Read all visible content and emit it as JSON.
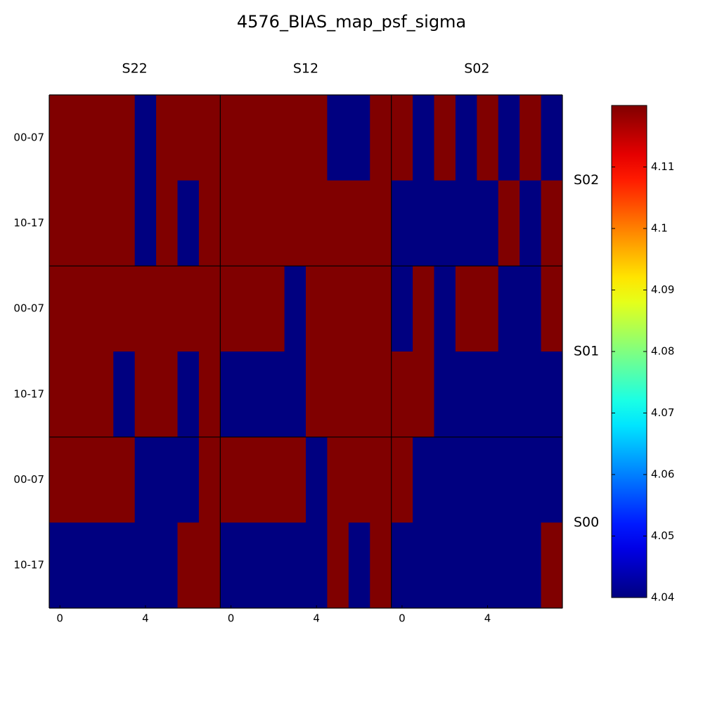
{
  "chart_data": {
    "type": "heatmap",
    "title": "4576_BIAS_map_psf_sigma",
    "column_panels": [
      "S22",
      "S12",
      "S02"
    ],
    "row_panels": [
      "S02",
      "S01",
      "S00"
    ],
    "xticks": [
      0,
      4
    ],
    "xlim": [
      -0.5,
      7.5
    ],
    "y_categories": [
      "00-07",
      "10-17"
    ],
    "colormap": "jet",
    "zlim": [
      4.04,
      4.12
    ],
    "colorbar_ticks": [
      4.04,
      4.05,
      4.06,
      4.07,
      4.08,
      4.09,
      4.1,
      4.11
    ],
    "values": [
      [
        4.12,
        4.12,
        4.12,
        4.12,
        4.04,
        4.12,
        4.12,
        4.12,
        4.12,
        4.12,
        4.12,
        4.12,
        4.12,
        4.04,
        4.04,
        4.12,
        4.12,
        4.04,
        4.12,
        4.04,
        4.12,
        4.04,
        4.12,
        4.04
      ],
      [
        4.12,
        4.12,
        4.12,
        4.12,
        4.04,
        4.12,
        4.04,
        4.12,
        4.12,
        4.12,
        4.12,
        4.12,
        4.12,
        4.12,
        4.12,
        4.12,
        4.04,
        4.04,
        4.04,
        4.04,
        4.04,
        4.12,
        4.04,
        4.12
      ],
      [
        4.12,
        4.12,
        4.12,
        4.12,
        4.12,
        4.12,
        4.12,
        4.12,
        4.12,
        4.12,
        4.12,
        4.04,
        4.12,
        4.12,
        4.12,
        4.12,
        4.04,
        4.12,
        4.04,
        4.12,
        4.12,
        4.04,
        4.04,
        4.12
      ],
      [
        4.12,
        4.12,
        4.12,
        4.04,
        4.12,
        4.12,
        4.04,
        4.12,
        4.04,
        4.04,
        4.04,
        4.04,
        4.12,
        4.12,
        4.12,
        4.12,
        4.12,
        4.12,
        4.04,
        4.04,
        4.04,
        4.04,
        4.04,
        4.04
      ],
      [
        4.12,
        4.12,
        4.12,
        4.12,
        4.04,
        4.04,
        4.04,
        4.12,
        4.12,
        4.12,
        4.12,
        4.12,
        4.04,
        4.12,
        4.12,
        4.12,
        4.12,
        4.04,
        4.04,
        4.04,
        4.04,
        4.04,
        4.04,
        4.04
      ],
      [
        4.04,
        4.04,
        4.04,
        4.04,
        4.04,
        4.04,
        4.12,
        4.12,
        4.04,
        4.04,
        4.04,
        4.04,
        4.04,
        4.12,
        4.04,
        4.12,
        4.04,
        4.04,
        4.04,
        4.04,
        4.04,
        4.04,
        4.04,
        4.12
      ]
    ]
  }
}
